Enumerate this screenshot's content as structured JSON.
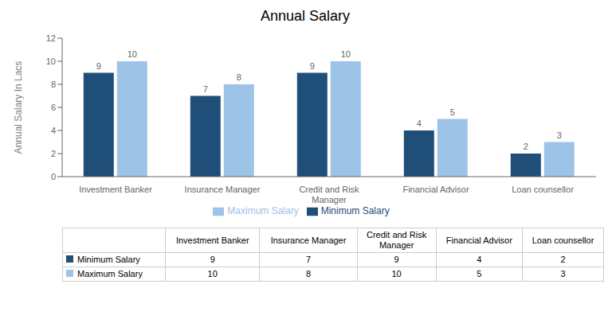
{
  "chart_data": {
    "type": "bar",
    "title": "Annual Salary",
    "ylabel": "Annual Salary In Lacs",
    "categories": [
      "Investment Banker",
      "Insurance Manager",
      "Credit and Risk\nManager",
      "Financial Advisor",
      "Loan counsellor"
    ],
    "series": [
      {
        "name": "Minimum Salary",
        "color": "#1F4E79",
        "values": [
          9,
          7,
          9,
          4,
          2
        ]
      },
      {
        "name": "Maximum Salary",
        "color": "#9DC3E6",
        "values": [
          10,
          8,
          10,
          5,
          3
        ]
      }
    ],
    "ylim": [
      0,
      12
    ],
    "yticks": [
      0,
      2,
      4,
      6,
      8,
      10,
      12
    ],
    "grid": false,
    "legend": "bottom",
    "data_labels": true
  }
}
